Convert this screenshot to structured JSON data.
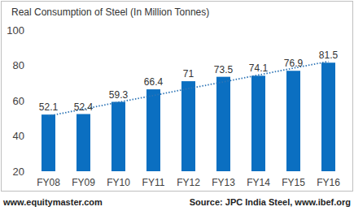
{
  "chart_data": {
    "type": "bar",
    "title": "Real Consumption of Steel (In Million Tonnes)",
    "categories": [
      "FY08",
      "FY09",
      "FY10",
      "FY11",
      "FY12",
      "FY13",
      "FY14",
      "FY15",
      "FY16"
    ],
    "series": [
      {
        "type": "bar",
        "color": "#0b6fc1",
        "data_labels": true,
        "values": [
          52.1,
          52.4,
          59.3,
          66.4,
          71,
          73.5,
          74.1,
          76.9,
          81.5
        ]
      },
      {
        "type": "line",
        "color": "#2e75b6",
        "line_style": "dotted",
        "values": [
          51.3,
          55.2,
          59.1,
          62.9,
          66.8,
          70.6,
          74.5,
          78.4,
          82.2
        ]
      }
    ],
    "ylim": [
      20,
      100
    ],
    "yticks": [
      20,
      40,
      60,
      80,
      100
    ],
    "grid": false,
    "credit": "www.equitymaster.com",
    "source": "Source: JPC India Steel, www.ibef.org"
  }
}
